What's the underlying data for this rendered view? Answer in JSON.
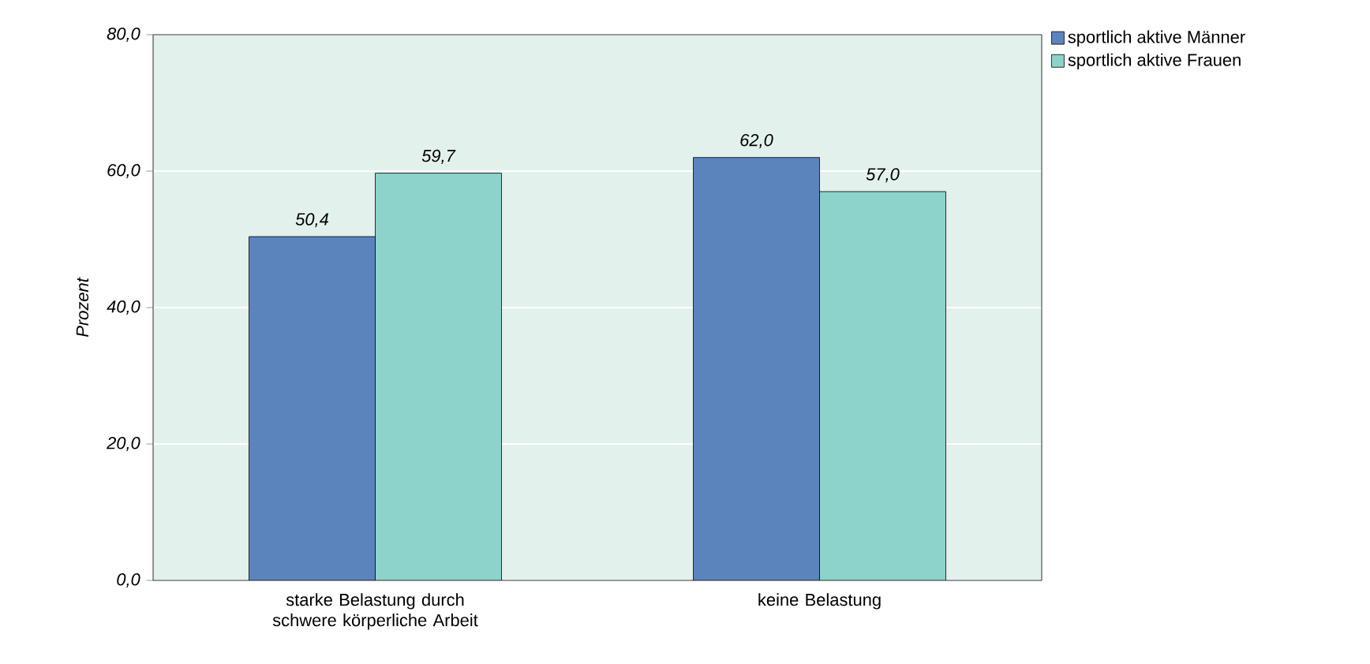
{
  "chart_data": {
    "type": "bar",
    "ylabel": "Prozent",
    "categories": [
      "starke Belastung durch schwere körperliche Arbeit",
      "keine Belastung"
    ],
    "series": [
      {
        "name": "sportlich aktive Männer",
        "color": "#5b84bd",
        "values": [
          50.4,
          62.0
        ],
        "value_labels": [
          "50,4",
          "62,0"
        ]
      },
      {
        "name": "sportlich aktive Frauen",
        "color": "#8dd3cc",
        "values": [
          59.7,
          57.0
        ],
        "value_labels": [
          "59,7",
          "57,0"
        ]
      }
    ],
    "ylim": [
      0,
      80
    ],
    "yticks": [
      {
        "value": 0,
        "label": "0,0"
      },
      {
        "value": 20,
        "label": "20,0"
      },
      {
        "value": 40,
        "label": "40,0"
      },
      {
        "value": 60,
        "label": "60,0"
      },
      {
        "value": 80,
        "label": "80,0"
      }
    ],
    "grid": "y",
    "legend": "top right"
  }
}
